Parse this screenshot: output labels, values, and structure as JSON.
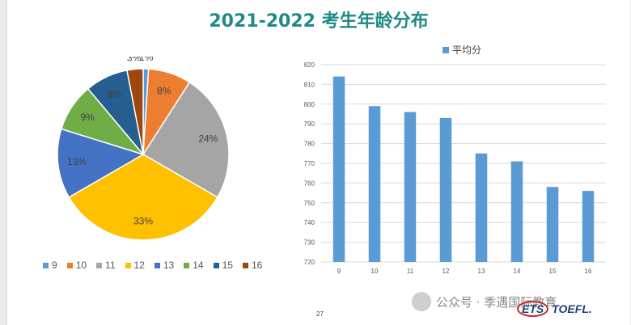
{
  "title": "2021-2022 考生年龄分布",
  "colors": {
    "title": "#1f8a86",
    "bar": "#5b9bd5",
    "gridline": "#d9d9d9",
    "axis_text": "#595959"
  },
  "chart_data": [
    {
      "type": "pie",
      "categories": [
        "9",
        "10",
        "11",
        "12",
        "13",
        "14",
        "15",
        "16"
      ],
      "values": [
        1,
        8,
        24,
        33,
        13,
        9,
        8,
        3
      ],
      "data_labels": [
        "1%",
        "8%",
        "24%",
        "33%",
        "13%",
        "9%",
        "8%",
        "3%"
      ],
      "colors": [
        "#5b9bd5",
        "#ed7d31",
        "#a5a5a5",
        "#ffc000",
        "#4472c4",
        "#70ad47",
        "#255e91",
        "#9e480e"
      ],
      "legend_position": "bottom"
    },
    {
      "type": "bar",
      "categories": [
        "9",
        "10",
        "11",
        "12",
        "13",
        "14",
        "15",
        "16"
      ],
      "series": [
        {
          "name": "平均分",
          "values": [
            814,
            799,
            796,
            793,
            775,
            771,
            758,
            756
          ]
        }
      ],
      "ylim": [
        720,
        820
      ],
      "yticks": [
        "720",
        "730",
        "740",
        "750",
        "760",
        "770",
        "780",
        "790",
        "800",
        "810",
        "820"
      ],
      "grid": true,
      "legend_position": "top"
    }
  ],
  "page_number": "27",
  "watermark": "公众号 · 季遇国际教育",
  "logo": "ETS TOEFL."
}
